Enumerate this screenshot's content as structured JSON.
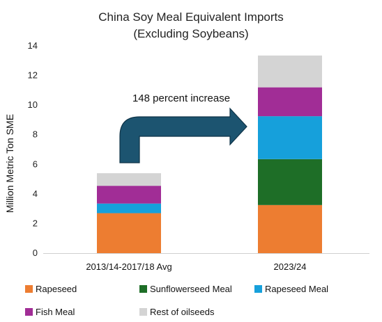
{
  "chart_data": {
    "type": "bar",
    "stacked": true,
    "title": "China Soy Meal Equivalent Imports",
    "subtitle": "(Excluding Soybeans)",
    "xlabel": "",
    "ylabel": "Million Metric Ton SME",
    "ylim": [
      0,
      14
    ],
    "yticks": [
      0,
      2,
      4,
      6,
      8,
      10,
      12,
      14
    ],
    "grid": false,
    "legend_position": "bottom",
    "categories": [
      "2013/14-2017/18 Avg",
      "2023/24"
    ],
    "series": [
      {
        "name": "Rapeseed",
        "color": "#ed7d31",
        "values": [
          2.7,
          3.25
        ]
      },
      {
        "name": "Sunflowerseed Meal",
        "color": "#1e6e27",
        "values": [
          0,
          3.1
        ]
      },
      {
        "name": "Rapeseed Meal",
        "color": "#16a0db",
        "values": [
          0.65,
          2.9
        ]
      },
      {
        "name": "Fish Meal",
        "color": "#a12d96",
        "values": [
          1.2,
          1.95
        ]
      },
      {
        "name": "Rest of oilseeds",
        "color": "#d4d4d4",
        "values": [
          0.85,
          2.15
        ]
      }
    ],
    "annotations": [
      {
        "text": "148 percent increase"
      }
    ],
    "arrow_color": "#1c5470"
  }
}
